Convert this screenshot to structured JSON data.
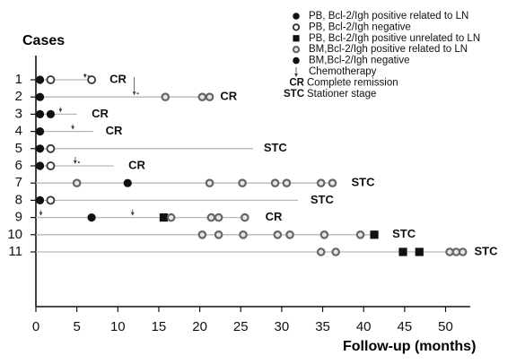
{
  "chart_data": {
    "type": "scatter",
    "ylabel": "Cases",
    "xlabel": "Follow-up (months)",
    "xlim": [
      0,
      53
    ],
    "xticks": [
      0,
      5,
      10,
      15,
      20,
      25,
      30,
      35,
      40,
      45,
      50
    ],
    "legend_position": "top-right",
    "legend": [
      {
        "key": "pb_pos_ln",
        "marker": "filled-circle",
        "label": "PB, Bcl-2/Igh positive related to LN"
      },
      {
        "key": "pb_neg",
        "marker": "open-circle",
        "label": "PB, Bcl-2/Igh negative"
      },
      {
        "key": "pb_pos_unrel",
        "marker": "filled-square",
        "label": "PB, Bcl-2/Igh positive unrelated to LN"
      },
      {
        "key": "bm_pos_ln",
        "marker": "gray-ring",
        "label": "BM,Bcl-2/Igh positive related to LN"
      },
      {
        "key": "bm_neg",
        "marker": "filled-circle",
        "label": "BM,Bcl-2/Igh negative"
      },
      {
        "key": "chemo",
        "marker": "arrow",
        "label": "Chemotherapy"
      },
      {
        "key": "cr",
        "marker": "text",
        "symbol": "CR",
        "label": "Complete remission"
      },
      {
        "key": "stc",
        "marker": "text",
        "symbol": "STC",
        "label": "Stationer stage"
      }
    ],
    "cases": [
      {
        "id": "1",
        "end": 7,
        "status": "CR",
        "status_x": 9,
        "chemo": [
          {
            "x": 6,
            "len": 7,
            "label": "",
            "dots": 1
          }
        ],
        "markers": [
          {
            "x": 0.5,
            "k": "pb_pos_ln"
          },
          {
            "x": 1.8,
            "k": "pb_neg"
          },
          {
            "x": 6.8,
            "k": "pb_neg"
          }
        ]
      },
      {
        "id": "2",
        "end": 21,
        "status": "CR",
        "status_x": 22.5,
        "chemo": [
          {
            "x": 12,
            "len": 22,
            "label": "",
            "dots": 1
          }
        ],
        "markers": [
          {
            "x": 0.5,
            "k": "pb_pos_ln"
          },
          {
            "x": 15.8,
            "k": "bm_pos_ln"
          },
          {
            "x": 20.3,
            "k": "bm_pos_ln"
          },
          {
            "x": 21.2,
            "k": "bm_pos_ln"
          }
        ]
      },
      {
        "id": "3",
        "end": 5,
        "status": "CR",
        "status_x": 6.8,
        "chemo": [
          {
            "x": 3,
            "len": 8,
            "label": "",
            "dots": 0
          }
        ],
        "markers": [
          {
            "x": 0.5,
            "k": "pb_pos_ln"
          },
          {
            "x": 1.8,
            "k": "pb_pos_ln"
          }
        ]
      },
      {
        "id": "4",
        "end": 7,
        "status": "CR",
        "status_x": 8.5,
        "chemo": [
          {
            "x": 4.5,
            "len": 8,
            "label": "",
            "dots": 0
          }
        ],
        "markers": [
          {
            "x": 0.5,
            "k": "pb_pos_ln"
          }
        ]
      },
      {
        "id": "5",
        "end": 26.5,
        "status": "STC",
        "status_x": 27.8,
        "chemo": [],
        "markers": [
          {
            "x": 0.5,
            "k": "pb_pos_ln"
          },
          {
            "x": 1.8,
            "k": "pb_neg"
          }
        ]
      },
      {
        "id": "6",
        "end": 9.5,
        "status": "CR",
        "status_x": 11.3,
        "chemo": [
          {
            "x": 4.8,
            "len": 10,
            "label": "",
            "dots": 1
          }
        ],
        "markers": [
          {
            "x": 0.5,
            "k": "pb_pos_ln"
          },
          {
            "x": 1.8,
            "k": "pb_neg"
          }
        ]
      },
      {
        "id": "7",
        "end": 36.5,
        "status": "STC",
        "status_x": 38.5,
        "chemo": [],
        "markers": [
          {
            "x": 5,
            "k": "bm_pos_ln"
          },
          {
            "x": 11.2,
            "k": "pb_pos_ln"
          },
          {
            "x": 21.2,
            "k": "bm_pos_ln"
          },
          {
            "x": 25.2,
            "k": "bm_pos_ln"
          },
          {
            "x": 29.2,
            "k": "bm_pos_ln"
          },
          {
            "x": 30.6,
            "k": "bm_pos_ln"
          },
          {
            "x": 34.8,
            "k": "bm_pos_ln"
          },
          {
            "x": 36.2,
            "k": "bm_pos_ln"
          }
        ]
      },
      {
        "id": "8",
        "end": 32,
        "status": "STC",
        "status_x": 33.5,
        "chemo": [],
        "markers": [
          {
            "x": 0.5,
            "k": "pb_pos_ln"
          },
          {
            "x": 1.8,
            "k": "pb_neg"
          }
        ]
      },
      {
        "id": "9",
        "end": 26,
        "status": "CR",
        "status_x": 28,
        "chemo": [
          {
            "x": 0.6,
            "len": 8,
            "label": "",
            "dots": 0
          },
          {
            "x": 11.8,
            "len": 9,
            "label": "",
            "dots": 0
          }
        ],
        "markers": [
          {
            "x": 6.8,
            "k": "pb_pos_ln"
          },
          {
            "x": 15.6,
            "k": "pb_pos_unrel"
          },
          {
            "x": 16.5,
            "k": "bm_pos_ln"
          },
          {
            "x": 21.4,
            "k": "bm_pos_ln"
          },
          {
            "x": 22.3,
            "k": "bm_pos_ln"
          },
          {
            "x": 25.5,
            "k": "bm_pos_ln"
          }
        ]
      },
      {
        "id": "10",
        "end": 41.5,
        "status": "STC",
        "status_x": 43.5,
        "chemo": [],
        "markers": [
          {
            "x": 20.3,
            "k": "bm_pos_ln"
          },
          {
            "x": 22.3,
            "k": "bm_pos_ln"
          },
          {
            "x": 25.3,
            "k": "bm_pos_ln"
          },
          {
            "x": 29.5,
            "k": "bm_pos_ln"
          },
          {
            "x": 31,
            "k": "bm_pos_ln"
          },
          {
            "x": 35.2,
            "k": "bm_pos_ln"
          },
          {
            "x": 39.6,
            "k": "bm_pos_ln"
          },
          {
            "x": 41.3,
            "k": "pb_pos_unrel"
          }
        ]
      },
      {
        "id": "11",
        "end": 52.5,
        "status": "STC",
        "status_x": 53.5,
        "chemo": [],
        "markers": [
          {
            "x": 34.8,
            "k": "bm_pos_ln"
          },
          {
            "x": 36.6,
            "k": "bm_pos_ln"
          },
          {
            "x": 44.8,
            "k": "pb_pos_unrel"
          },
          {
            "x": 46.8,
            "k": "pb_pos_unrel"
          },
          {
            "x": 50.5,
            "k": "bm_pos_ln"
          },
          {
            "x": 51.3,
            "k": "bm_pos_ln"
          },
          {
            "x": 52.1,
            "k": "bm_pos_ln"
          }
        ]
      }
    ]
  }
}
